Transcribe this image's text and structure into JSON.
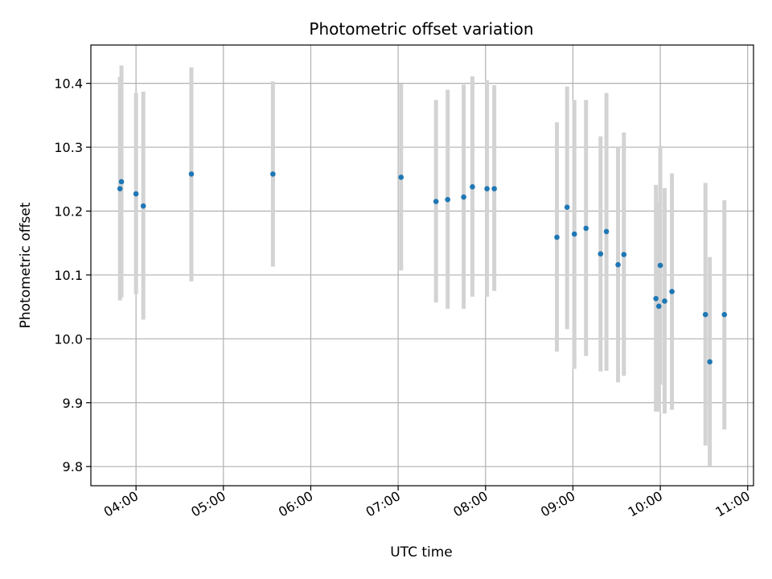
{
  "chart_data": {
    "type": "scatter",
    "title": "Photometric offset variation",
    "xlabel": "UTC time",
    "ylabel": "Photometric offset",
    "grid": true,
    "xlim": [
      "03:29",
      "11:04"
    ],
    "ylim": [
      9.77,
      10.46
    ],
    "x_ticks": [
      "04:00",
      "05:00",
      "06:00",
      "07:00",
      "08:00",
      "09:00",
      "10:00",
      "11:00"
    ],
    "y_ticks": [
      "9.8",
      "9.9",
      "10.0",
      "10.1",
      "10.2",
      "10.3",
      "10.4"
    ],
    "point_color": "#1f77b4",
    "errorbar_color": "#d3d3d3",
    "points": [
      {
        "time": "03:49",
        "value": 10.235,
        "low": 10.06,
        "high": 10.41
      },
      {
        "time": "03:50",
        "value": 10.246,
        "low": 10.065,
        "high": 10.428
      },
      {
        "time": "04:00",
        "value": 10.227,
        "low": 10.07,
        "high": 10.385
      },
      {
        "time": "04:05",
        "value": 10.208,
        "low": 10.03,
        "high": 10.387
      },
      {
        "time": "04:38",
        "value": 10.258,
        "low": 10.09,
        "high": 10.425
      },
      {
        "time": "05:34",
        "value": 10.258,
        "low": 10.113,
        "high": 10.403
      },
      {
        "time": "07:02",
        "value": 10.253,
        "low": 10.107,
        "high": 10.399
      },
      {
        "time": "07:26",
        "value": 10.215,
        "low": 10.057,
        "high": 10.374
      },
      {
        "time": "07:34",
        "value": 10.218,
        "low": 10.047,
        "high": 10.39
      },
      {
        "time": "07:45",
        "value": 10.222,
        "low": 10.047,
        "high": 10.398
      },
      {
        "time": "07:51",
        "value": 10.238,
        "low": 10.066,
        "high": 10.411
      },
      {
        "time": "08:01",
        "value": 10.235,
        "low": 10.066,
        "high": 10.405
      },
      {
        "time": "08:06",
        "value": 10.235,
        "low": 10.075,
        "high": 10.397
      },
      {
        "time": "08:49",
        "value": 10.159,
        "low": 9.98,
        "high": 10.339
      },
      {
        "time": "08:56",
        "value": 10.206,
        "low": 10.015,
        "high": 10.395
      },
      {
        "time": "09:01",
        "value": 10.164,
        "low": 9.953,
        "high": 10.374
      },
      {
        "time": "09:09",
        "value": 10.173,
        "low": 9.973,
        "high": 10.374
      },
      {
        "time": "09:19",
        "value": 10.133,
        "low": 9.949,
        "high": 10.317
      },
      {
        "time": "09:23",
        "value": 10.168,
        "low": 9.95,
        "high": 10.385
      },
      {
        "time": "09:31",
        "value": 10.116,
        "low": 9.932,
        "high": 10.3
      },
      {
        "time": "09:35",
        "value": 10.132,
        "low": 9.942,
        "high": 10.323
      },
      {
        "time": "09:57",
        "value": 10.063,
        "low": 9.886,
        "high": 10.241
      },
      {
        "time": "09:59",
        "value": 10.051,
        "low": 9.886,
        "high": 10.215
      },
      {
        "time": "10:00",
        "value": 10.115,
        "low": 9.928,
        "high": 10.302
      },
      {
        "time": "10:03",
        "value": 10.059,
        "low": 9.883,
        "high": 10.236
      },
      {
        "time": "10:08",
        "value": 10.074,
        "low": 9.889,
        "high": 10.259
      },
      {
        "time": "10:31",
        "value": 10.038,
        "low": 9.833,
        "high": 10.244
      },
      {
        "time": "10:34",
        "value": 9.964,
        "low": 9.8,
        "high": 10.128
      },
      {
        "time": "10:44",
        "value": 10.038,
        "low": 9.858,
        "high": 10.217
      }
    ]
  }
}
